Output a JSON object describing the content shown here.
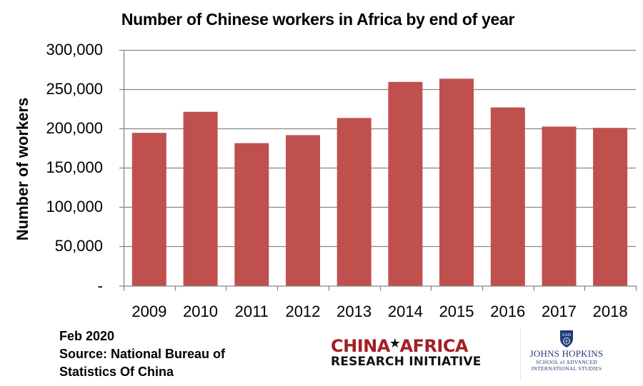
{
  "chart_data": {
    "type": "bar",
    "title": "Number of Chinese workers in Africa by end of year",
    "xlabel": "",
    "ylabel": "Number of workers",
    "categories": [
      "2009",
      "2010",
      "2011",
      "2012",
      "2013",
      "2014",
      "2015",
      "2016",
      "2017",
      "2018"
    ],
    "values": [
      194700,
      221500,
      181600,
      191800,
      213600,
      259600,
      263700,
      227000,
      202700,
      201100
    ],
    "ylim": [
      0,
      300000
    ],
    "yticks": [
      0,
      50000,
      100000,
      150000,
      200000,
      250000,
      300000
    ],
    "ytick_labels": [
      "-",
      "50,000",
      "100,000",
      "150,000",
      "200,000",
      "250,000",
      "300,000"
    ],
    "grid": true,
    "legend": null,
    "bar_color": "#c0504d",
    "grid_color": "#868686"
  },
  "footer": {
    "date": "Feb 2020",
    "source_line1": "Source: National Bureau of",
    "source_line2": "Statistics Of China"
  },
  "logos": {
    "car": {
      "top_left": "CHINA",
      "star": "★",
      "top_right": "AFRICA",
      "bottom": "RESEARCH INITIATIVE"
    },
    "jhu": {
      "shield_text": "SAIS",
      "name": "JOHNS HOPKINS",
      "sub1": "SCHOOL of ADVANCED",
      "sub2": "INTERNATIONAL STUDIES"
    }
  }
}
